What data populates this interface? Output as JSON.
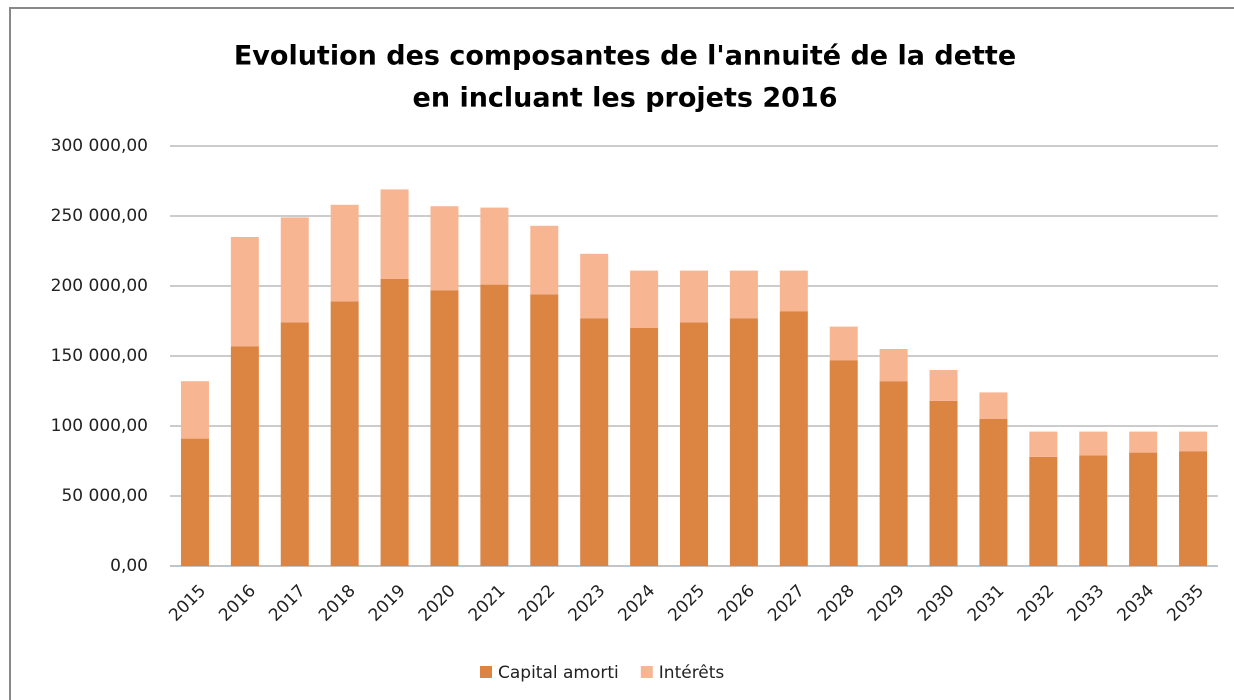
{
  "chart_data": {
    "type": "bar",
    "stacked": true,
    "title": [
      "Evolution des composantes de l'annuité de la dette",
      "en incluant les projets 2016"
    ],
    "categories": [
      "2015",
      "2016",
      "2017",
      "2018",
      "2019",
      "2020",
      "2021",
      "2022",
      "2023",
      "2024",
      "2025",
      "2026",
      "2027",
      "2028",
      "2029",
      "2030",
      "2031",
      "2032",
      "2033",
      "2034",
      "2035"
    ],
    "series": [
      {
        "name": "Capital amorti",
        "color": "#dc8442",
        "values": [
          91000,
          157000,
          174000,
          189000,
          205000,
          197000,
          201000,
          194000,
          177000,
          170000,
          174000,
          177000,
          182000,
          147000,
          132000,
          118000,
          105000,
          78000,
          79000,
          81000,
          82000
        ]
      },
      {
        "name": "Intérêts",
        "color": "#f8b592",
        "values": [
          41000,
          78000,
          75000,
          69000,
          64000,
          60000,
          55000,
          49000,
          46000,
          41000,
          37000,
          34000,
          29000,
          24000,
          23000,
          22000,
          19000,
          18000,
          17000,
          15000,
          14000
        ]
      }
    ],
    "ylim": [
      0,
      300000
    ],
    "yticks": [
      {
        "value": 0,
        "label": "0,00"
      },
      {
        "value": 50000,
        "label": "50 000,00"
      },
      {
        "value": 100000,
        "label": "100 000,00"
      },
      {
        "value": 150000,
        "label": "150 000,00"
      },
      {
        "value": 200000,
        "label": "200 000,00"
      },
      {
        "value": 250000,
        "label": "250 000,00"
      },
      {
        "value": 300000,
        "label": "300 000,00"
      }
    ],
    "grid": true,
    "legend": "bottom"
  }
}
